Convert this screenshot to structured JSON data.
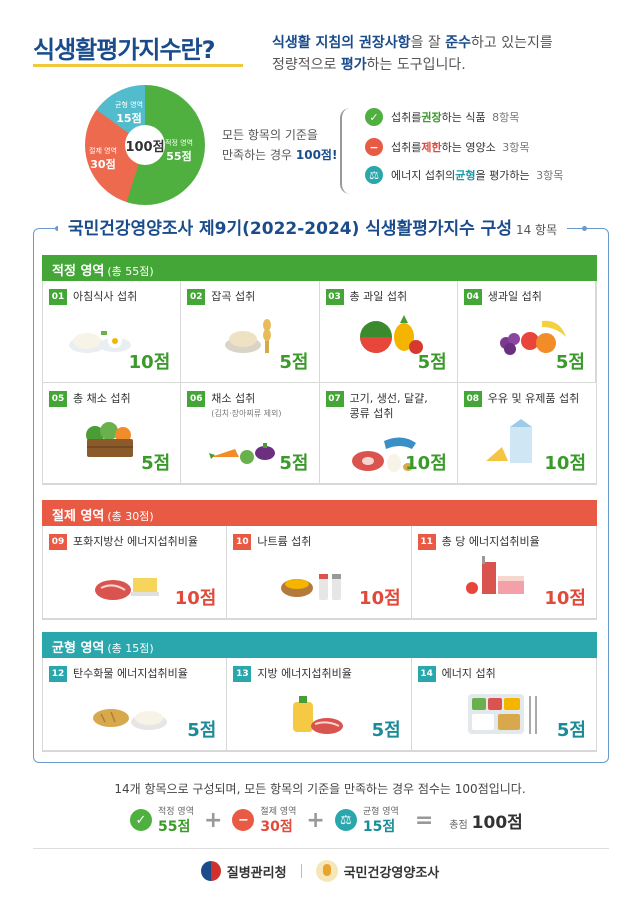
{
  "header": {
    "title": "식생활평가지수란?",
    "intro_line1_a": "식생활 지침의 권장사항",
    "intro_line1_b": "을 잘 ",
    "intro_line1_c": "준수",
    "intro_line1_d": "하고 있는지를",
    "intro_line2_a": "정량적으로 ",
    "intro_line2_b": "평가",
    "intro_line2_c": "하는 도구입니다."
  },
  "pie": {
    "center": "100점",
    "slices": [
      {
        "area": "적정 영역",
        "score": "55점",
        "value": 55,
        "color": "#4fb040"
      },
      {
        "area": "절제 영역",
        "score": "30점",
        "value": 30,
        "color": "#ee6a4e"
      },
      {
        "area": "균형 영역",
        "score": "15점",
        "value": 15,
        "color": "#52bccc"
      }
    ],
    "desc_line1": "모든 항목의 기준을",
    "desc_line2_a": "만족하는 경우 ",
    "desc_line2_b": "100점!"
  },
  "legend": [
    {
      "a": "섭취를 ",
      "b": "권장",
      "c": "하는 식품",
      "count": "8항목",
      "icon": "check-icon",
      "color": "#4fb040"
    },
    {
      "a": "섭취를 ",
      "b": "제한",
      "c": "하는 영양소",
      "count": "3항목",
      "icon": "minus-icon",
      "color": "#e95a45"
    },
    {
      "a": "에너지 섭취의 ",
      "b": "균형",
      "c": "을 평가하는",
      "count": "3항목",
      "icon": "scale-icon",
      "color": "#2aa7ad"
    }
  ],
  "section": {
    "title": "국민건강영양조사 제9기(2022-2024) 식생활평가지수 구성",
    "count": "14 항목"
  },
  "categories": [
    {
      "title": "적정 영역",
      "total": "(총 55점)",
      "items": [
        {
          "num": "01",
          "name": "아침식사 섭취",
          "sub": "",
          "score": "10점",
          "icon": "breakfast-icon"
        },
        {
          "num": "02",
          "name": "잡곡 섭취",
          "sub": "",
          "score": "5점",
          "icon": "grain-icon"
        },
        {
          "num": "03",
          "name": "총 과일 섭취",
          "sub": "",
          "score": "5점",
          "icon": "fruit-icon"
        },
        {
          "num": "04",
          "name": "생과일 섭취",
          "sub": "",
          "score": "5점",
          "icon": "fresh-fruit-icon"
        },
        {
          "num": "05",
          "name": "총 채소 섭취",
          "sub": "",
          "score": "5점",
          "icon": "vegetable-basket-icon"
        },
        {
          "num": "06",
          "name": "채소 섭취",
          "sub": "(김치·장아찌류 제외)",
          "score": "5점",
          "icon": "vegetable-icon"
        },
        {
          "num": "07",
          "name": "고기, 생선, 달걀,",
          "name2": "콩류 섭취",
          "sub": "",
          "score": "10점",
          "icon": "protein-icon"
        },
        {
          "num": "08",
          "name": "우유 및 유제품 섭취",
          "sub": "",
          "score": "10점",
          "icon": "dairy-icon"
        }
      ]
    },
    {
      "title": "절제 영역",
      "total": "(총 30점)",
      "items": [
        {
          "num": "09",
          "name": "포화지방산 에너지섭취비율",
          "score": "10점",
          "icon": "fat-icon"
        },
        {
          "num": "10",
          "name": "나트륨 섭취",
          "score": "10점",
          "icon": "salt-icon"
        },
        {
          "num": "11",
          "name": "총 당 에너지섭취비율",
          "score": "10점",
          "icon": "sugar-icon"
        }
      ]
    },
    {
      "title": "균형 영역",
      "total": "(총 15점)",
      "items": [
        {
          "num": "12",
          "name": "탄수화물 에너지섭취비율",
          "score": "5점",
          "icon": "carb-icon"
        },
        {
          "num": "13",
          "name": "지방 에너지섭취비율",
          "score": "5점",
          "icon": "oil-icon"
        },
        {
          "num": "14",
          "name": "에너지 섭취",
          "score": "5점",
          "icon": "meal-tray-icon"
        }
      ]
    }
  ],
  "summary": {
    "text": "14개 항목으로 구성되며, 모든 항목의 기준을 만족하는 경우 점수는 100점입니다.",
    "items": [
      {
        "label": "적정 영역",
        "score": "55점"
      },
      {
        "label": "절제 영역",
        "score": "30점"
      },
      {
        "label": "균형 영역",
        "score": "15점"
      }
    ],
    "plus": "+",
    "equals": "=",
    "total_label": "총점",
    "total_score": "100점"
  },
  "footer": {
    "org1": "질병관리청",
    "org2": "국민건강영양조사"
  }
}
